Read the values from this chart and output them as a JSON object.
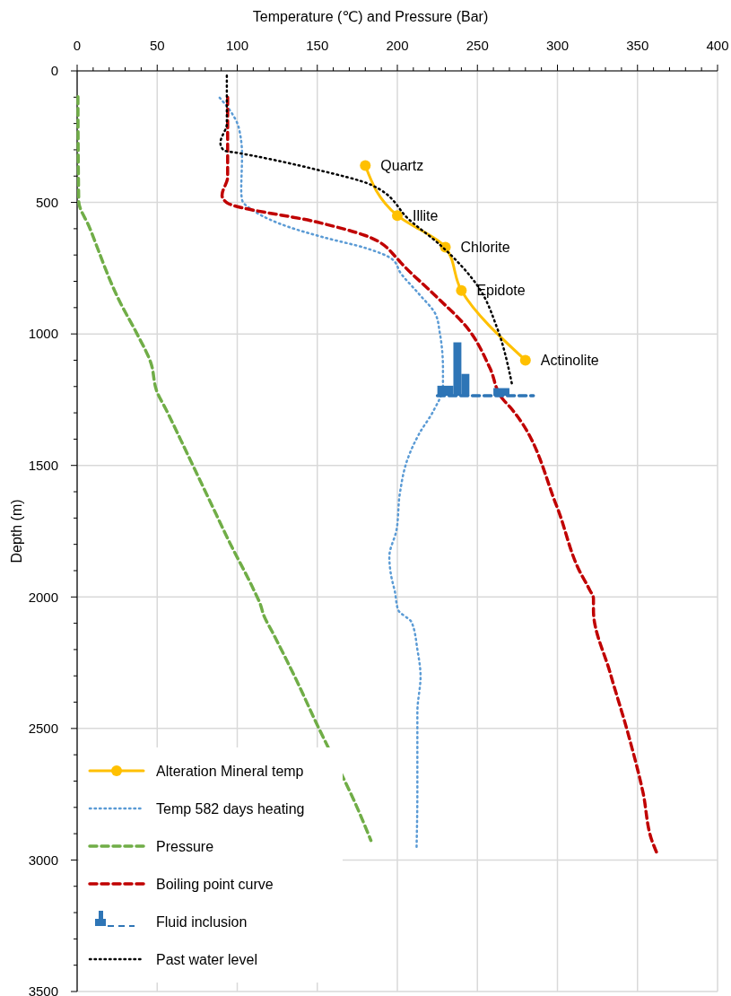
{
  "chart_data": {
    "type": "line",
    "xlabel": "Temperature (℃) and Pressure (Bar)",
    "ylabel": "Depth (m)",
    "xlim": [
      0,
      400
    ],
    "ylim": [
      3500,
      0
    ],
    "xticks": [
      0,
      {
        "value": 10,
        "label": null
      },
      {
        "value": 20,
        "label": null
      },
      {
        "value": 30,
        "label": null
      },
      {
        "value": 40,
        "label": null
      },
      50,
      {
        "value": 60,
        "label": null
      },
      {
        "value": 70,
        "label": null
      },
      {
        "value": 80,
        "label": null
      },
      {
        "value": 90,
        "label": null
      },
      100,
      {
        "value": 110,
        "label": null
      },
      {
        "value": 120,
        "label": null
      },
      {
        "value": 130,
        "label": null
      },
      {
        "value": 140,
        "label": null
      },
      150,
      {
        "value": 160,
        "label": null
      },
      {
        "value": 170,
        "label": null
      },
      {
        "value": 180,
        "label": null
      },
      {
        "value": 190,
        "label": null
      },
      200,
      {
        "value": 210,
        "label": null
      },
      {
        "value": 220,
        "label": null
      },
      {
        "value": 230,
        "label": null
      },
      {
        "value": 240,
        "label": null
      },
      250,
      {
        "value": 260,
        "label": null
      },
      {
        "value": 270,
        "label": null
      },
      {
        "value": 280,
        "label": null
      },
      {
        "value": 290,
        "label": null
      },
      300,
      {
        "value": 310,
        "label": null
      },
      {
        "value": 320,
        "label": null
      },
      {
        "value": 330,
        "label": null
      },
      {
        "value": 340,
        "label": null
      },
      350,
      {
        "value": 360,
        "label": null
      },
      {
        "value": 370,
        "label": null
      },
      {
        "value": 380,
        "label": null
      },
      {
        "value": 390,
        "label": null
      },
      400
    ],
    "yticks": [
      0,
      {
        "value": 100,
        "label": null
      },
      {
        "value": 200,
        "label": null
      },
      {
        "value": 300,
        "label": null
      },
      {
        "value": 400,
        "label": null
      },
      500,
      {
        "value": 600,
        "label": null
      },
      {
        "value": 700,
        "label": null
      },
      {
        "value": 800,
        "label": null
      },
      {
        "value": 900,
        "label": null
      },
      1000,
      {
        "value": 1100,
        "label": null
      },
      {
        "value": 1200,
        "label": null
      },
      {
        "value": 1300,
        "label": null
      },
      {
        "value": 1400,
        "label": null
      },
      1500,
      {
        "value": 1600,
        "label": null
      },
      {
        "value": 1700,
        "label": null
      },
      {
        "value": 1800,
        "label": null
      },
      {
        "value": 1900,
        "label": null
      },
      2000,
      {
        "value": 2100,
        "label": null
      },
      {
        "value": 2200,
        "label": null
      },
      {
        "value": 2300,
        "label": null
      },
      {
        "value": 2400,
        "label": null
      },
      2500,
      {
        "value": 2600,
        "label": null
      },
      {
        "value": 2700,
        "label": null
      },
      {
        "value": 2800,
        "label": null
      },
      {
        "value": 2900,
        "label": null
      },
      3000,
      {
        "value": 3100,
        "label": null
      },
      {
        "value": 3200,
        "label": null
      },
      {
        "value": 3300,
        "label": null
      },
      {
        "value": 3400,
        "label": null
      },
      3500
    ],
    "grid": true,
    "legend": "bottom left",
    "series": [
      {
        "name": "Alteration Mineral temp",
        "color": "#ffc000",
        "marker": "circle",
        "line_style": "solid",
        "x": [
          180,
          200,
          230,
          240,
          280
        ],
        "values": [
          360,
          550,
          670,
          835,
          1100
        ]
      },
      {
        "name": "Temp 582 days heating",
        "color": "#5b9bd5",
        "marker": "none",
        "line_style": "dotted",
        "x": [
          89,
          96,
          101,
          103,
          102.5,
          103,
          111,
          131.5,
          153.5,
          181,
          197,
          202,
          213.5,
          224,
          226.5,
          228.5,
          228.5,
          222.5,
          213.5,
          206.5,
          201.5,
          199.5,
          195,
          196,
          198.5,
          200.5,
          209,
          212.5,
          214.5,
          212.5,
          212.5,
          212
        ],
        "values": [
          102,
          155,
          217,
          319,
          456,
          490,
          535,
          592,
          632,
          675,
          717,
          768,
          848,
          927,
          995,
          1132,
          1200,
          1293,
          1381,
          1474,
          1609,
          1745,
          1847,
          1915,
          1981,
          2049,
          2097,
          2199,
          2302,
          2438,
          2745,
          2955
        ]
      },
      {
        "name": "Pressure",
        "color": "#70ad47",
        "marker": "none",
        "line_style": "dashed",
        "x": [
          0.5,
          1,
          7.5,
          27,
          37,
          46,
          50,
          55.5,
          69,
          82.5,
          96,
          110,
          114.5,
          116.5,
          122,
          136,
          149,
          176,
          183.5
        ],
        "values": [
          98,
          495,
          592,
          882,
          995,
          1109,
          1222,
          1287,
          1458,
          1630,
          1802,
          1969,
          2029,
          2069,
          2134,
          2304,
          2474,
          2816,
          2926
        ]
      },
      {
        "name": "Boiling point curve",
        "color": "#c00000",
        "marker": "none",
        "line_style": "dashed",
        "x": [
          94,
          94,
          90.5,
          93.5,
          150,
          180,
          199.5,
          202,
          224.5,
          243,
          258,
          265.5,
          270.5,
          299.5,
          314,
          320,
          322.5,
          322.5,
          333,
          344,
          353.5,
          359,
          362
        ],
        "values": [
          101,
          404,
          473,
          501,
          575,
          626,
          711,
          728,
          859,
          972,
          1132,
          1245,
          1279,
          1654,
          1904,
          1972,
          2006,
          2052,
          2290,
          2517,
          2745,
          2926,
          2972
        ]
      },
      {
        "name": "Fluid inclusion",
        "type": "histogram",
        "color": "#2e75b6",
        "bins": [
          225,
          235,
          240,
          245,
          260,
          270
        ],
        "base": [
          1235,
          1235,
          1235,
          null,
          1235
        ],
        "values": [
          -38,
          -203,
          -83,
          null,
          -29
        ]
      },
      {
        "color": "#2e75b6",
        "marker": "none",
        "line_style": "dashed",
        "x": [
          225,
          285
        ],
        "values": [
          1235,
          1235
        ]
      },
      {
        "name": "Past water level",
        "color": "#000000",
        "marker": "none",
        "line_style": "dotted",
        "x": [
          93.5,
          93.5,
          89.5,
          91.5,
          102.5,
          150,
          183.5,
          208,
          227.5,
          251,
          262,
          271.5
        ],
        "values": [
          18,
          200,
          274,
          302,
          314,
          376,
          433,
          569,
          666,
          825,
          972,
          1188
        ]
      }
    ],
    "annotations": [
      {
        "text": "Quartz",
        "x": 180,
        "y": 360
      },
      {
        "text": "Illite",
        "x": 200,
        "y": 550
      },
      {
        "text": "Chlorite",
        "x": 230,
        "y": 670
      },
      {
        "text": "Epidote",
        "x": 240,
        "y": 835
      },
      {
        "text": "Actinolite",
        "x": 280,
        "y": 1100
      }
    ]
  }
}
